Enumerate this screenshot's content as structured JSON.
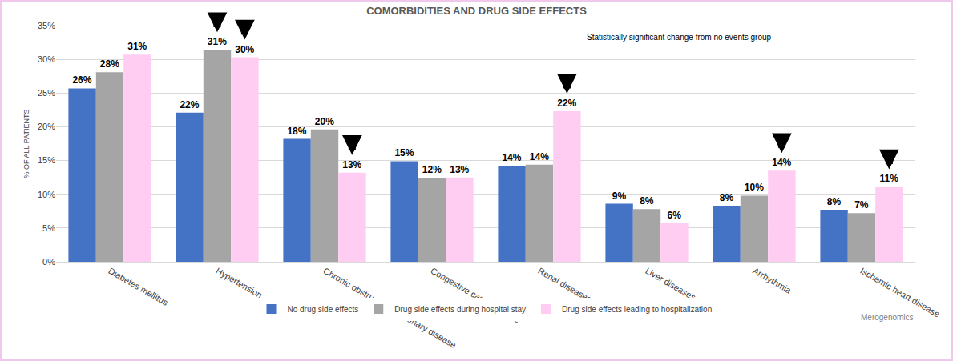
{
  "chart_data": {
    "type": "bar",
    "title": "COMORBIDITIES AND DRUG SIDE EFFECTS",
    "y_label": "% OF ALL PATIENTS",
    "categories": [
      "Diabetes mellitus",
      "Hypertension",
      "Chronic obstructive pulmonary disease",
      "Congestive cardiac failure",
      "Renal diseases",
      "Liver diseases",
      "Arrhythmia",
      "Ischemic heart disease"
    ],
    "series": [
      {
        "name": "No drug side effects",
        "color": "#4472c4",
        "values": [
          25.7,
          22.1,
          18.2,
          14.9,
          14.2,
          8.6,
          8.3,
          7.7
        ],
        "value_labels": [
          "26%",
          "22%",
          "18%",
          "15%",
          "14%",
          "9%",
          "8%",
          "8%"
        ],
        "significant": [
          false,
          false,
          false,
          false,
          false,
          false,
          false,
          false
        ]
      },
      {
        "name": "Drug side effects during hospital stay",
        "color": "#a5a5a5",
        "values": [
          28.1,
          31.4,
          19.6,
          12.4,
          14.4,
          7.8,
          9.8,
          7.2
        ],
        "value_labels": [
          "28%",
          "31%",
          "20%",
          "12%",
          "14%",
          "8%",
          "10%",
          "7%"
        ],
        "significant": [
          false,
          true,
          false,
          false,
          false,
          false,
          false,
          false
        ]
      },
      {
        "name": "Drug side effects leading to hospitalization",
        "color": "#ffccf2",
        "values": [
          30.7,
          30.3,
          13.2,
          12.5,
          22.3,
          5.7,
          13.5,
          11.1
        ],
        "value_labels": [
          "31%",
          "30%",
          "13%",
          "13%",
          "22%",
          "6%",
          "14%",
          "11%"
        ],
        "significant": [
          false,
          true,
          true,
          false,
          true,
          false,
          true,
          true
        ]
      }
    ],
    "annotations": [
      {
        "text": "Statistically significant change from no events group"
      },
      {
        "text": "Merogenomics"
      }
    ],
    "ylim": [
      0,
      35
    ],
    "yticks": [
      {
        "value": 0,
        "label": "0%"
      },
      {
        "value": 5,
        "label": "5%"
      },
      {
        "value": 10,
        "label": "10%"
      },
      {
        "value": 15,
        "label": "15%"
      },
      {
        "value": 20,
        "label": "20%"
      },
      {
        "value": 25,
        "label": "25%"
      },
      {
        "value": 30,
        "label": "30%"
      },
      {
        "value": 35,
        "label": "35%"
      }
    ],
    "grid": true,
    "legend": "bottom",
    "data_labels": true
  }
}
